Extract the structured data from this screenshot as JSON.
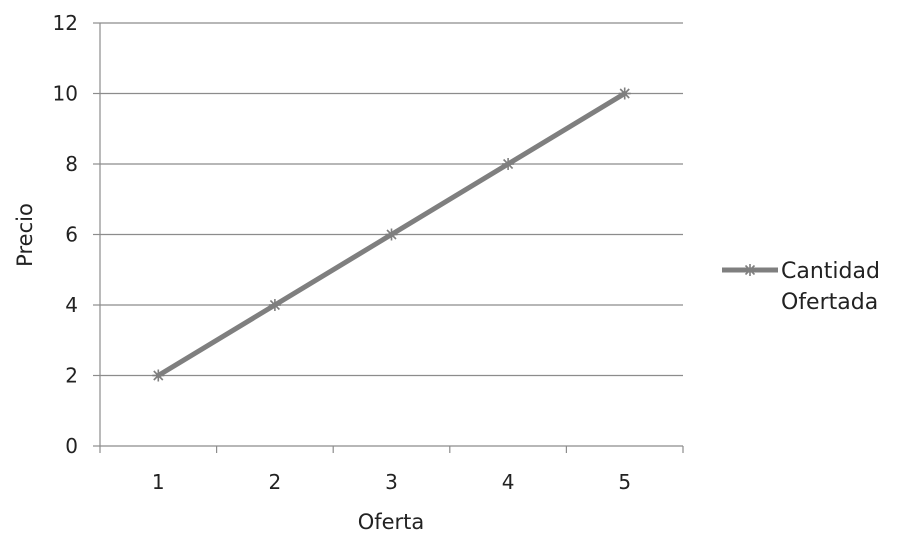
{
  "chart_data": {
    "type": "line",
    "categories": [
      "1",
      "2",
      "3",
      "4",
      "5"
    ],
    "series": [
      {
        "name": "Cantidad Ofertada",
        "values": [
          2,
          4,
          6,
          8,
          10
        ]
      }
    ],
    "xlabel": "Oferta",
    "ylabel": "Precio",
    "ylim": [
      0,
      12
    ],
    "yticks": [
      "0",
      "2",
      "4",
      "6",
      "8",
      "10",
      "12"
    ],
    "grid": "horizontal",
    "legend": "right",
    "colors": {
      "line": "#7f7f7f",
      "marker": "#7f7f7f",
      "grid": "#8c8c8c",
      "axis": "#8c8c8c"
    },
    "marker": "asterisk"
  },
  "legend": {
    "line1": "Cantidad",
    "line2": "Ofertada"
  }
}
